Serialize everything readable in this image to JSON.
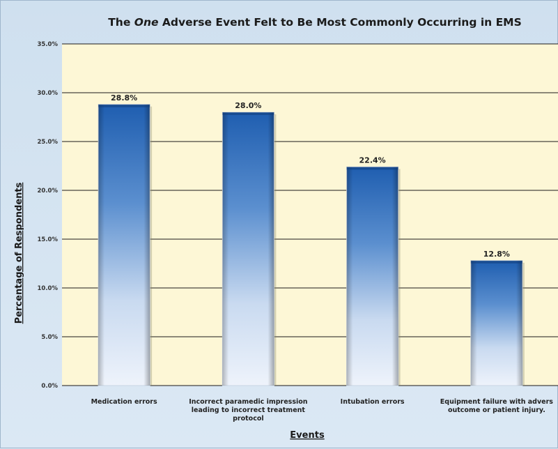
{
  "chart_data": {
    "type": "bar",
    "title_prefix": "The ",
    "title_emphasis": "One",
    "title_suffix": " Adverse Event  Felt to Be Most Commonly Occurring in EMS",
    "xlabel": "Events",
    "ylabel": "Percentage of  Respondents",
    "ylim": [
      0,
      35
    ],
    "yticks": [
      "0.0%",
      "5.0%",
      "10.0%",
      "15.0%",
      "20.0%",
      "25.0%",
      "30.0%",
      "35.0%"
    ],
    "grid": true,
    "categories": [
      [
        "Medication errors"
      ],
      [
        "Incorrect paramedic impression",
        "leading to incorrect treatment",
        "protocol"
      ],
      [
        "Intubation errors"
      ],
      [
        "Equipment failure with advers",
        "outcome or patient injury."
      ]
    ],
    "values": [
      28.8,
      28.0,
      22.4,
      12.8
    ],
    "value_labels": [
      "28.8%",
      "28.0%",
      "22.4%",
      "12.8%"
    ],
    "colors": {
      "plot_bg": "#fdf7d6",
      "bar_top": "#1f5eb0",
      "bar_bottom": "#eef3fb",
      "gridline": "#1a1a1a"
    }
  }
}
